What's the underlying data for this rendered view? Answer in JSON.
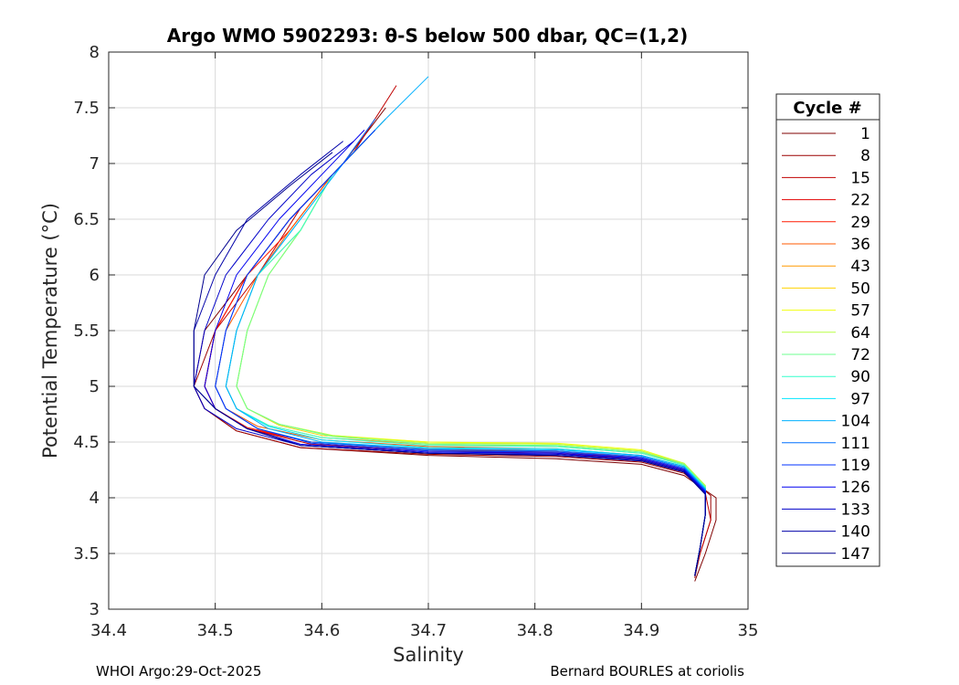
{
  "chart_data": {
    "type": "line",
    "title": "Argo WMO 5902293: θ-S below 500 dbar,  QC=(1,2)",
    "xlabel": "Salinity",
    "ylabel": "Potential Temperature (°C)",
    "xlim": [
      34.4,
      35
    ],
    "ylim": [
      3,
      8
    ],
    "xticks": [
      34.4,
      34.5,
      34.6,
      34.7,
      34.8,
      34.9,
      35
    ],
    "xtick_labels": [
      "34.4",
      "34.5",
      "34.6",
      "34.7",
      "34.8",
      "34.9",
      "35"
    ],
    "yticks": [
      3,
      3.5,
      4,
      4.5,
      5,
      5.5,
      6,
      6.5,
      7,
      7.5,
      8
    ],
    "ytick_labels": [
      "3",
      "3.5",
      "4",
      "4.5",
      "5",
      "5.5",
      "6",
      "6.5",
      "7",
      "7.5",
      "8"
    ],
    "grid": true,
    "legend": {
      "title": "Cycle #",
      "placement": "right-outside",
      "entries": [
        {
          "label": "1",
          "color": "#7f0000"
        },
        {
          "label": "8",
          "color": "#9b0000"
        },
        {
          "label": "15",
          "color": "#c00000"
        },
        {
          "label": "22",
          "color": "#e30000"
        },
        {
          "label": "29",
          "color": "#ff1a00"
        },
        {
          "label": "36",
          "color": "#ff5a00"
        },
        {
          "label": "43",
          "color": "#ff9900"
        },
        {
          "label": "50",
          "color": "#ffd200"
        },
        {
          "label": "57",
          "color": "#f2ff0d"
        },
        {
          "label": "64",
          "color": "#b8ff47"
        },
        {
          "label": "72",
          "color": "#6dff92"
        },
        {
          "label": "90",
          "color": "#33ffcc"
        },
        {
          "label": "97",
          "color": "#00e6ff"
        },
        {
          "label": "104",
          "color": "#00b0ff"
        },
        {
          "label": "111",
          "color": "#0070ff"
        },
        {
          "label": "119",
          "color": "#0033ff"
        },
        {
          "label": "126",
          "color": "#0000f0"
        },
        {
          "label": "133",
          "color": "#0000c8"
        },
        {
          "label": "140",
          "color": "#0000a8"
        },
        {
          "label": "147",
          "color": "#00008f"
        }
      ]
    },
    "series": [
      {
        "name": "1",
        "x": [
          34.66,
          34.62,
          34.57,
          34.53,
          34.49,
          34.48,
          34.49,
          34.52,
          34.58,
          34.7,
          34.82,
          34.9,
          34.94,
          34.97,
          34.97,
          34.96,
          34.95
        ],
        "y": [
          7.5,
          7.0,
          6.5,
          6.0,
          5.5,
          5.0,
          4.8,
          4.6,
          4.45,
          4.38,
          4.35,
          4.3,
          4.2,
          4.0,
          3.8,
          3.5,
          3.25
        ]
      },
      {
        "name": "8",
        "x": [
          34.66,
          34.62,
          34.57,
          34.53,
          34.5,
          34.48,
          34.49,
          34.52,
          34.58,
          34.7,
          34.82,
          34.9,
          34.94,
          34.965,
          34.965,
          34.955,
          34.95
        ],
        "y": [
          7.4,
          7.0,
          6.5,
          6.0,
          5.5,
          5.0,
          4.8,
          4.6,
          4.45,
          4.39,
          4.37,
          4.32,
          4.22,
          4.02,
          3.8,
          3.5,
          3.28
        ]
      },
      {
        "name": "15",
        "x": [
          34.67,
          34.63,
          34.58,
          34.54,
          34.5,
          34.49,
          34.5,
          34.53,
          34.59,
          34.7,
          34.82,
          34.9,
          34.94,
          34.96,
          34.965,
          34.955,
          34.95
        ],
        "y": [
          7.7,
          7.1,
          6.6,
          6.0,
          5.5,
          5.0,
          4.8,
          4.62,
          4.48,
          4.42,
          4.4,
          4.34,
          4.24,
          4.04,
          3.8,
          3.5,
          3.3
        ]
      },
      {
        "name": "22",
        "x": [
          34.65,
          34.62,
          34.57,
          34.53,
          34.5,
          34.49,
          34.5,
          34.53,
          34.59,
          34.7,
          34.82,
          34.9,
          34.94,
          34.96,
          34.96,
          34.955,
          34.95
        ],
        "y": [
          7.4,
          7.0,
          6.5,
          6.0,
          5.5,
          5.0,
          4.8,
          4.62,
          4.5,
          4.43,
          4.41,
          4.35,
          4.25,
          4.05,
          3.85,
          3.55,
          3.3
        ]
      },
      {
        "name": "29",
        "x": [
          34.65,
          34.61,
          34.57,
          34.53,
          34.5,
          34.49,
          34.5,
          34.53,
          34.59,
          34.7,
          34.82,
          34.9,
          34.94,
          34.96,
          34.96,
          34.955,
          34.95
        ],
        "y": [
          7.3,
          6.9,
          6.4,
          6.0,
          5.5,
          5.0,
          4.8,
          4.63,
          4.5,
          4.44,
          4.42,
          4.36,
          4.26,
          4.06,
          3.85,
          3.55,
          3.3
        ]
      },
      {
        "name": "36",
        "x": [
          34.65,
          34.61,
          34.57,
          34.54,
          34.51,
          34.5,
          34.51,
          34.54,
          34.6,
          34.7,
          34.82,
          34.9,
          34.94,
          34.96,
          34.96,
          34.955,
          34.95
        ],
        "y": [
          7.3,
          6.9,
          6.4,
          6.0,
          5.5,
          5.0,
          4.8,
          4.64,
          4.52,
          4.46,
          4.44,
          4.38,
          4.28,
          4.08,
          3.85,
          3.55,
          3.3
        ]
      },
      {
        "name": "43",
        "x": [
          34.65,
          34.61,
          34.58,
          34.54,
          34.52,
          34.51,
          34.52,
          34.55,
          34.6,
          34.7,
          34.82,
          34.9,
          34.94,
          34.96,
          34.96,
          34.955,
          34.95
        ],
        "y": [
          7.3,
          6.9,
          6.4,
          6.0,
          5.5,
          5.0,
          4.8,
          4.65,
          4.54,
          4.48,
          4.46,
          4.4,
          4.3,
          4.1,
          3.85,
          3.55,
          3.3
        ]
      },
      {
        "name": "50",
        "x": [
          34.64,
          34.61,
          34.58,
          34.55,
          34.53,
          34.52,
          34.53,
          34.56,
          34.6,
          34.7,
          34.82,
          34.9,
          34.94,
          34.96,
          34.96,
          34.955,
          34.95
        ],
        "y": [
          7.2,
          6.9,
          6.4,
          6.0,
          5.5,
          5.0,
          4.8,
          4.65,
          4.56,
          4.5,
          4.48,
          4.42,
          4.3,
          4.1,
          3.85,
          3.55,
          3.3
        ]
      },
      {
        "name": "57",
        "x": [
          34.64,
          34.61,
          34.58,
          34.55,
          34.53,
          34.52,
          34.53,
          34.56,
          34.61,
          34.7,
          34.82,
          34.9,
          34.94,
          34.96,
          34.96,
          34.955,
          34.95
        ],
        "y": [
          7.2,
          6.9,
          6.4,
          6.0,
          5.5,
          5.0,
          4.8,
          4.66,
          4.56,
          4.5,
          4.49,
          4.43,
          4.31,
          4.11,
          3.85,
          3.55,
          3.3
        ]
      },
      {
        "name": "64",
        "x": [
          34.64,
          34.61,
          34.58,
          34.55,
          34.53,
          34.52,
          34.53,
          34.56,
          34.61,
          34.7,
          34.82,
          34.9,
          34.94,
          34.96,
          34.96,
          34.955,
          34.95
        ],
        "y": [
          7.2,
          6.9,
          6.4,
          6.0,
          5.5,
          5.0,
          4.8,
          4.66,
          4.56,
          4.49,
          4.48,
          4.42,
          4.31,
          4.11,
          3.85,
          3.55,
          3.3
        ]
      },
      {
        "name": "72",
        "x": [
          34.65,
          34.61,
          34.58,
          34.55,
          34.53,
          34.52,
          34.53,
          34.56,
          34.61,
          34.7,
          34.82,
          34.9,
          34.94,
          34.96,
          34.96,
          34.955,
          34.95
        ],
        "y": [
          7.3,
          6.9,
          6.4,
          6.0,
          5.5,
          5.0,
          4.8,
          4.66,
          4.55,
          4.48,
          4.47,
          4.41,
          4.3,
          4.1,
          3.85,
          3.55,
          3.3
        ]
      },
      {
        "name": "90",
        "x": [
          34.65,
          34.61,
          34.58,
          34.54,
          34.52,
          34.51,
          34.52,
          34.55,
          34.6,
          34.7,
          34.82,
          34.9,
          34.94,
          34.96,
          34.96,
          34.955,
          34.95
        ],
        "y": [
          7.3,
          6.9,
          6.4,
          6.0,
          5.5,
          5.0,
          4.8,
          4.65,
          4.54,
          4.47,
          4.46,
          4.4,
          4.29,
          4.09,
          3.85,
          3.55,
          3.3
        ]
      },
      {
        "name": "97",
        "x": [
          34.66,
          34.62,
          34.58,
          34.54,
          34.52,
          34.51,
          34.52,
          34.55,
          34.6,
          34.7,
          34.82,
          34.9,
          34.94,
          34.96,
          34.96,
          34.955,
          34.95
        ],
        "y": [
          7.4,
          7.0,
          6.5,
          6.0,
          5.5,
          5.0,
          4.8,
          4.64,
          4.52,
          4.45,
          4.44,
          4.38,
          4.28,
          4.08,
          3.85,
          3.55,
          3.3
        ]
      },
      {
        "name": "104",
        "x": [
          34.7,
          34.66,
          34.62,
          34.58,
          34.54,
          34.52,
          34.51,
          34.52,
          34.55,
          34.6,
          34.7,
          34.82,
          34.9,
          34.94,
          34.96,
          34.96,
          34.955,
          34.95
        ],
        "y": [
          7.78,
          7.4,
          7.0,
          6.5,
          6.0,
          5.5,
          5.0,
          4.8,
          4.62,
          4.5,
          4.44,
          4.43,
          4.38,
          4.28,
          4.08,
          3.85,
          3.55,
          3.3
        ]
      },
      {
        "name": "111",
        "x": [
          34.65,
          34.62,
          34.57,
          34.53,
          34.51,
          34.5,
          34.51,
          34.54,
          34.59,
          34.7,
          34.82,
          34.9,
          34.94,
          34.96,
          34.96,
          34.955,
          34.95
        ],
        "y": [
          7.4,
          7.0,
          6.5,
          6.0,
          5.5,
          5.0,
          4.8,
          4.62,
          4.5,
          4.43,
          4.42,
          4.37,
          4.27,
          4.07,
          3.85,
          3.55,
          3.3
        ]
      },
      {
        "name": "119",
        "x": [
          34.65,
          34.61,
          34.57,
          34.53,
          34.51,
          34.5,
          34.51,
          34.54,
          34.59,
          34.7,
          34.82,
          34.9,
          34.94,
          34.96,
          34.96,
          34.955,
          34.95
        ],
        "y": [
          7.3,
          6.9,
          6.5,
          6.0,
          5.5,
          5.0,
          4.8,
          4.62,
          4.49,
          4.42,
          4.41,
          4.36,
          4.26,
          4.06,
          3.85,
          3.55,
          3.3
        ]
      },
      {
        "name": "126",
        "x": [
          34.64,
          34.6,
          34.56,
          34.52,
          34.5,
          34.49,
          34.5,
          34.53,
          34.58,
          34.7,
          34.82,
          34.9,
          34.94,
          34.96,
          34.96,
          34.955,
          34.95
        ],
        "y": [
          7.3,
          6.9,
          6.5,
          6.0,
          5.5,
          5.0,
          4.8,
          4.62,
          4.48,
          4.41,
          4.4,
          4.35,
          4.25,
          4.05,
          3.85,
          3.55,
          3.3
        ]
      },
      {
        "name": "133",
        "x": [
          34.63,
          34.59,
          34.55,
          34.51,
          34.49,
          34.48,
          34.49,
          34.52,
          34.58,
          34.7,
          34.82,
          34.9,
          34.94,
          34.96,
          34.96,
          34.955,
          34.95
        ],
        "y": [
          7.2,
          6.9,
          6.5,
          6.0,
          5.5,
          5.0,
          4.8,
          4.62,
          4.47,
          4.4,
          4.39,
          4.34,
          4.24,
          4.04,
          3.85,
          3.55,
          3.3
        ]
      },
      {
        "name": "140",
        "x": [
          34.62,
          34.58,
          34.53,
          34.5,
          34.48,
          34.48,
          34.5,
          34.53,
          34.58,
          34.7,
          34.82,
          34.9,
          34.94,
          34.96,
          34.96,
          34.955,
          34.95
        ],
        "y": [
          7.2,
          6.9,
          6.5,
          6.0,
          5.5,
          5.0,
          4.8,
          4.62,
          4.47,
          4.4,
          4.38,
          4.33,
          4.23,
          4.03,
          3.85,
          3.55,
          3.3
        ]
      },
      {
        "name": "147",
        "x": [
          34.61,
          34.57,
          34.52,
          34.49,
          34.48,
          34.48,
          34.5,
          34.53,
          34.58,
          34.7,
          34.82,
          34.9,
          34.94,
          34.96,
          34.96,
          34.955,
          34.95
        ],
        "y": [
          7.1,
          6.8,
          6.4,
          6.0,
          5.5,
          5.0,
          4.8,
          4.62,
          4.47,
          4.4,
          4.38,
          4.33,
          4.23,
          4.03,
          3.85,
          3.55,
          3.3
        ]
      }
    ]
  },
  "footer": {
    "left": "WHOI Argo:29-Oct-2025",
    "right": "Bernard BOURLES at coriolis"
  }
}
